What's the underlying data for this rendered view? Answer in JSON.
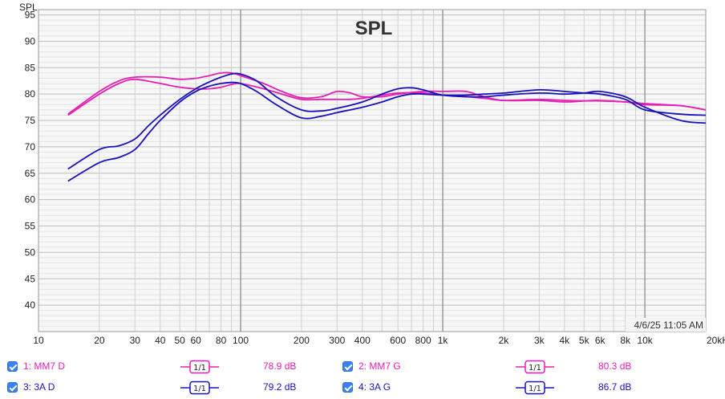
{
  "chart_data": {
    "type": "line",
    "title": "SPL",
    "ylabel": "SPL",
    "xlabel": "",
    "x_scale": "log",
    "xlim": [
      10,
      20000
    ],
    "ylim": [
      35,
      96
    ],
    "yticks": [
      40,
      45,
      50,
      55,
      60,
      65,
      70,
      75,
      80,
      85,
      90,
      95
    ],
    "xticks": [
      {
        "v": 10,
        "label": "10"
      },
      {
        "v": 20,
        "label": "20"
      },
      {
        "v": 30,
        "label": "30"
      },
      {
        "v": 40,
        "label": "40"
      },
      {
        "v": 50,
        "label": "50"
      },
      {
        "v": 60,
        "label": "60"
      },
      {
        "v": 80,
        "label": "80"
      },
      {
        "v": 100,
        "label": "100"
      },
      {
        "v": 200,
        "label": "200"
      },
      {
        "v": 300,
        "label": "300"
      },
      {
        "v": 400,
        "label": "400"
      },
      {
        "v": 600,
        "label": "600"
      },
      {
        "v": 800,
        "label": "800"
      },
      {
        "v": 1000,
        "label": "1k"
      },
      {
        "v": 2000,
        "label": "2k"
      },
      {
        "v": 3000,
        "label": "3k"
      },
      {
        "v": 4000,
        "label": "4k"
      },
      {
        "v": 5000,
        "label": "5k"
      },
      {
        "v": 6000,
        "label": "6k"
      },
      {
        "v": 8000,
        "label": "8k"
      },
      {
        "v": 10000,
        "label": "10k"
      },
      {
        "v": 20000,
        "label": "20kHz"
      }
    ],
    "grid": true,
    "legend": "bottom",
    "timestamp": "4/6/25 11:05 AM",
    "series": [
      {
        "name": "1: MM7 D",
        "color": "#e61fb4",
        "value_label": "78.9 dB",
        "x": [
          14,
          20,
          25,
          30,
          40,
          50,
          60,
          70,
          80,
          90,
          100,
          130,
          160,
          200,
          250,
          300,
          350,
          400,
          500,
          600,
          800,
          1000,
          1300,
          1600,
          2000,
          3000,
          4000,
          5000,
          6000,
          8000,
          10000,
          15000,
          20000
        ],
        "y": [
          76,
          80,
          82,
          82.8,
          82,
          81.3,
          81,
          81,
          81.3,
          81.8,
          82,
          81,
          80,
          79,
          79,
          79,
          79,
          79.2,
          79.8,
          80.2,
          80.2,
          79.8,
          79.5,
          79.2,
          78.8,
          79,
          78.8,
          78.7,
          78.7,
          78.5,
          78.2,
          77.8,
          77
        ]
      },
      {
        "name": "2: MM7 G",
        "color": "#e61fb4",
        "value_label": "80.3 dB",
        "x": [
          14,
          20,
          25,
          30,
          40,
          50,
          60,
          70,
          80,
          90,
          100,
          130,
          160,
          200,
          250,
          300,
          350,
          400,
          500,
          600,
          800,
          1000,
          1300,
          1600,
          2000,
          3000,
          4000,
          5000,
          6000,
          8000,
          10000,
          15000,
          20000
        ],
        "y": [
          76.2,
          80.5,
          82.5,
          83.2,
          83.2,
          82.8,
          83,
          83.5,
          84,
          84,
          83.5,
          82,
          80.5,
          79.3,
          79.5,
          80.5,
          80.2,
          79.5,
          79.5,
          80,
          80.5,
          80.5,
          80.5,
          79.5,
          78.8,
          78.8,
          78.5,
          78.7,
          78.8,
          78.5,
          78,
          77.8,
          77
        ]
      },
      {
        "name": "3: 3A D",
        "color": "#1a12b8",
        "value_label": "79.2 dB",
        "x": [
          14,
          20,
          25,
          30,
          35,
          40,
          50,
          60,
          70,
          80,
          90,
          100,
          120,
          150,
          200,
          250,
          300,
          400,
          500,
          600,
          700,
          800,
          1000,
          1300,
          1600,
          2000,
          3000,
          4000,
          5000,
          6000,
          8000,
          10000,
          15000,
          20000
        ],
        "y": [
          63.5,
          67,
          68,
          69.5,
          72.5,
          75,
          78.5,
          80.5,
          81.5,
          82,
          82.2,
          82,
          80.5,
          78,
          75.5,
          75.8,
          76.5,
          77.5,
          78.5,
          79.5,
          80,
          80,
          79.8,
          79.8,
          80,
          80.2,
          80.8,
          80.5,
          80.2,
          80,
          79,
          77,
          76.2,
          76
        ]
      },
      {
        "name": "4: 3A G",
        "color": "#1a12b8",
        "value_label": "86.7 dB",
        "x": [
          14,
          20,
          25,
          30,
          35,
          40,
          50,
          60,
          70,
          80,
          90,
          100,
          120,
          150,
          200,
          250,
          300,
          400,
          500,
          600,
          700,
          800,
          1000,
          1300,
          1600,
          2000,
          3000,
          4000,
          5000,
          6000,
          8000,
          10000,
          15000,
          20000
        ],
        "y": [
          65.8,
          69.5,
          70.2,
          71.5,
          74,
          76,
          79,
          81,
          82.3,
          83.2,
          83.8,
          83.8,
          82.5,
          79.5,
          77,
          76.8,
          77.3,
          78.5,
          80,
          81,
          81.2,
          80.8,
          79.8,
          79.5,
          79.5,
          79.8,
          80.2,
          80,
          80.2,
          80.5,
          79.5,
          77.5,
          75,
          74.5
        ]
      }
    ]
  },
  "legend": {
    "items": [
      {
        "label": "1: MM7 D",
        "smoothing": "1/1",
        "value": "78.9 dB"
      },
      {
        "label": "2: MM7 G",
        "smoothing": "1/1",
        "value": "80.3 dB"
      },
      {
        "label": "3: 3A D",
        "smoothing": "1/1",
        "value": "79.2 dB"
      },
      {
        "label": "4: 3A G",
        "smoothing": "1/1",
        "value": "86.7 dB"
      }
    ]
  }
}
